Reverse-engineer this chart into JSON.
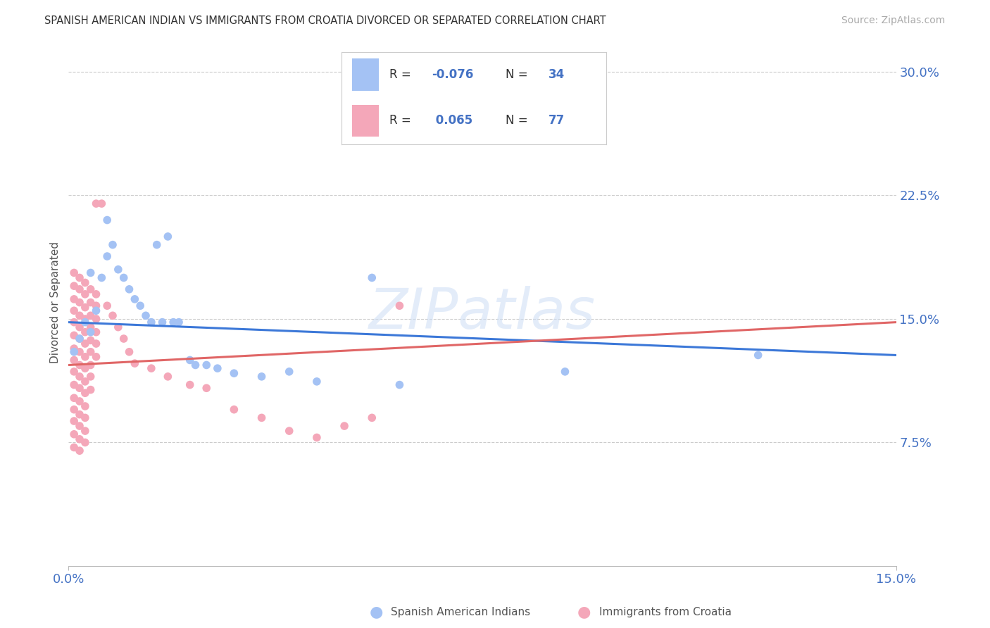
{
  "title": "SPANISH AMERICAN INDIAN VS IMMIGRANTS FROM CROATIA DIVORCED OR SEPARATED CORRELATION CHART",
  "source": "Source: ZipAtlas.com",
  "ylabel": "Divorced or Separated",
  "xmin": 0.0,
  "xmax": 0.15,
  "ymin": 0.0,
  "ymax": 0.32,
  "yticks": [
    0.075,
    0.15,
    0.225,
    0.3
  ],
  "ytick_labels": [
    "7.5%",
    "15.0%",
    "22.5%",
    "30.0%"
  ],
  "xtick_labels": [
    "0.0%",
    "15.0%"
  ],
  "color_blue": "#a4c2f4",
  "color_pink": "#f4a7b9",
  "trend_blue": "#3c78d8",
  "trend_pink": "#e06666",
  "legend_label1": "Spanish American Indians",
  "legend_label2": "Immigrants from Croatia",
  "blue_trend_start": 0.148,
  "blue_trend_end": 0.128,
  "pink_trend_start": 0.122,
  "pink_trend_end": 0.148,
  "blue_points": [
    [
      0.001,
      0.13
    ],
    [
      0.002,
      0.138
    ],
    [
      0.003,
      0.148
    ],
    [
      0.004,
      0.142
    ],
    [
      0.004,
      0.178
    ],
    [
      0.005,
      0.155
    ],
    [
      0.006,
      0.175
    ],
    [
      0.007,
      0.188
    ],
    [
      0.007,
      0.21
    ],
    [
      0.008,
      0.195
    ],
    [
      0.009,
      0.18
    ],
    [
      0.01,
      0.175
    ],
    [
      0.011,
      0.168
    ],
    [
      0.012,
      0.162
    ],
    [
      0.013,
      0.158
    ],
    [
      0.014,
      0.152
    ],
    [
      0.015,
      0.148
    ],
    [
      0.016,
      0.195
    ],
    [
      0.017,
      0.148
    ],
    [
      0.018,
      0.2
    ],
    [
      0.019,
      0.148
    ],
    [
      0.02,
      0.148
    ],
    [
      0.022,
      0.125
    ],
    [
      0.023,
      0.122
    ],
    [
      0.025,
      0.122
    ],
    [
      0.027,
      0.12
    ],
    [
      0.03,
      0.117
    ],
    [
      0.035,
      0.115
    ],
    [
      0.04,
      0.118
    ],
    [
      0.045,
      0.112
    ],
    [
      0.055,
      0.175
    ],
    [
      0.06,
      0.11
    ],
    [
      0.09,
      0.118
    ],
    [
      0.125,
      0.128
    ]
  ],
  "pink_points": [
    [
      0.001,
      0.178
    ],
    [
      0.001,
      0.17
    ],
    [
      0.001,
      0.162
    ],
    [
      0.001,
      0.155
    ],
    [
      0.001,
      0.148
    ],
    [
      0.001,
      0.14
    ],
    [
      0.001,
      0.132
    ],
    [
      0.001,
      0.125
    ],
    [
      0.001,
      0.118
    ],
    [
      0.001,
      0.11
    ],
    [
      0.001,
      0.102
    ],
    [
      0.001,
      0.095
    ],
    [
      0.001,
      0.088
    ],
    [
      0.001,
      0.08
    ],
    [
      0.001,
      0.072
    ],
    [
      0.002,
      0.175
    ],
    [
      0.002,
      0.168
    ],
    [
      0.002,
      0.16
    ],
    [
      0.002,
      0.152
    ],
    [
      0.002,
      0.145
    ],
    [
      0.002,
      0.138
    ],
    [
      0.002,
      0.13
    ],
    [
      0.002,
      0.122
    ],
    [
      0.002,
      0.115
    ],
    [
      0.002,
      0.108
    ],
    [
      0.002,
      0.1
    ],
    [
      0.002,
      0.092
    ],
    [
      0.002,
      0.085
    ],
    [
      0.002,
      0.077
    ],
    [
      0.002,
      0.07
    ],
    [
      0.003,
      0.172
    ],
    [
      0.003,
      0.165
    ],
    [
      0.003,
      0.157
    ],
    [
      0.003,
      0.15
    ],
    [
      0.003,
      0.142
    ],
    [
      0.003,
      0.135
    ],
    [
      0.003,
      0.127
    ],
    [
      0.003,
      0.12
    ],
    [
      0.003,
      0.112
    ],
    [
      0.003,
      0.105
    ],
    [
      0.003,
      0.097
    ],
    [
      0.003,
      0.09
    ],
    [
      0.003,
      0.082
    ],
    [
      0.003,
      0.075
    ],
    [
      0.004,
      0.168
    ],
    [
      0.004,
      0.16
    ],
    [
      0.004,
      0.152
    ],
    [
      0.004,
      0.145
    ],
    [
      0.004,
      0.137
    ],
    [
      0.004,
      0.13
    ],
    [
      0.004,
      0.122
    ],
    [
      0.004,
      0.115
    ],
    [
      0.004,
      0.107
    ],
    [
      0.005,
      0.22
    ],
    [
      0.005,
      0.165
    ],
    [
      0.005,
      0.158
    ],
    [
      0.005,
      0.15
    ],
    [
      0.005,
      0.142
    ],
    [
      0.005,
      0.135
    ],
    [
      0.005,
      0.127
    ],
    [
      0.006,
      0.22
    ],
    [
      0.007,
      0.158
    ],
    [
      0.008,
      0.152
    ],
    [
      0.009,
      0.145
    ],
    [
      0.01,
      0.138
    ],
    [
      0.011,
      0.13
    ],
    [
      0.012,
      0.123
    ],
    [
      0.015,
      0.12
    ],
    [
      0.018,
      0.115
    ],
    [
      0.022,
      0.11
    ],
    [
      0.025,
      0.108
    ],
    [
      0.03,
      0.095
    ],
    [
      0.035,
      0.09
    ],
    [
      0.04,
      0.082
    ],
    [
      0.045,
      0.078
    ],
    [
      0.05,
      0.085
    ],
    [
      0.055,
      0.09
    ],
    [
      0.06,
      0.158
    ]
  ]
}
